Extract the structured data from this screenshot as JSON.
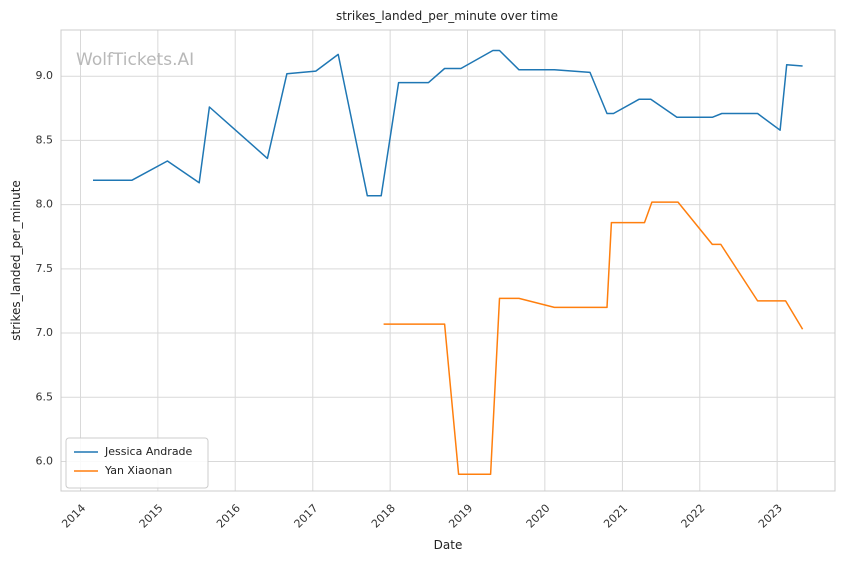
{
  "chart_data": {
    "type": "line",
    "title": "strikes_landed_per_minute over time",
    "xlabel": "Date",
    "ylabel": "strikes_landed_per_minute",
    "xlim": [
      "2013-10-01",
      "2023-10-01"
    ],
    "ylim": [
      5.77,
      9.36
    ],
    "x_ticks": [
      "2014",
      "2015",
      "2016",
      "2017",
      "2018",
      "2019",
      "2020",
      "2021",
      "2022",
      "2023"
    ],
    "y_ticks": [
      6.0,
      6.5,
      7.0,
      7.5,
      8.0,
      8.5,
      9.0
    ],
    "grid": true,
    "legend_position": "lower-left",
    "watermark": "WolfTickets.AI",
    "series": [
      {
        "name": "Jessica Andrade",
        "color": "#1f77b4",
        "points": [
          [
            "2014-03-01",
            8.19
          ],
          [
            "2014-09-01",
            8.19
          ],
          [
            "2015-02-15",
            8.34
          ],
          [
            "2015-07-15",
            8.17
          ],
          [
            "2015-09-01",
            8.76
          ],
          [
            "2016-06-01",
            8.36
          ],
          [
            "2016-09-01",
            9.02
          ],
          [
            "2017-01-15",
            9.04
          ],
          [
            "2017-05-01",
            9.17
          ],
          [
            "2017-09-15",
            8.07
          ],
          [
            "2017-11-20",
            8.07
          ],
          [
            "2018-02-10",
            8.95
          ],
          [
            "2018-07-01",
            8.95
          ],
          [
            "2018-09-15",
            9.06
          ],
          [
            "2018-12-01",
            9.06
          ],
          [
            "2019-05-01",
            9.2
          ],
          [
            "2019-06-01",
            9.2
          ],
          [
            "2019-09-01",
            9.05
          ],
          [
            "2020-02-15",
            9.05
          ],
          [
            "2020-08-01",
            9.03
          ],
          [
            "2020-10-20",
            8.71
          ],
          [
            "2020-11-20",
            8.71
          ],
          [
            "2021-03-20",
            8.82
          ],
          [
            "2021-05-15",
            8.82
          ],
          [
            "2021-09-15",
            8.68
          ],
          [
            "2022-03-01",
            8.68
          ],
          [
            "2022-04-15",
            8.71
          ],
          [
            "2022-10-01",
            8.71
          ],
          [
            "2023-01-15",
            8.58
          ],
          [
            "2023-02-15",
            9.09
          ],
          [
            "2023-05-01",
            9.08
          ]
        ]
      },
      {
        "name": "Yan Xiaonan",
        "color": "#ff7f0e",
        "points": [
          [
            "2017-12-01",
            7.07
          ],
          [
            "2018-09-15",
            7.07
          ],
          [
            "2018-11-20",
            5.9
          ],
          [
            "2019-04-20",
            5.9
          ],
          [
            "2019-06-01",
            7.27
          ],
          [
            "2019-09-01",
            7.27
          ],
          [
            "2020-02-15",
            7.2
          ],
          [
            "2020-10-20",
            7.2
          ],
          [
            "2020-11-10",
            7.86
          ],
          [
            "2021-04-15",
            7.86
          ],
          [
            "2021-05-20",
            8.02
          ],
          [
            "2021-09-20",
            8.02
          ],
          [
            "2022-03-01",
            7.69
          ],
          [
            "2022-04-10",
            7.69
          ],
          [
            "2022-10-01",
            7.25
          ],
          [
            "2023-02-10",
            7.25
          ],
          [
            "2023-05-01",
            7.03
          ]
        ]
      }
    ]
  }
}
